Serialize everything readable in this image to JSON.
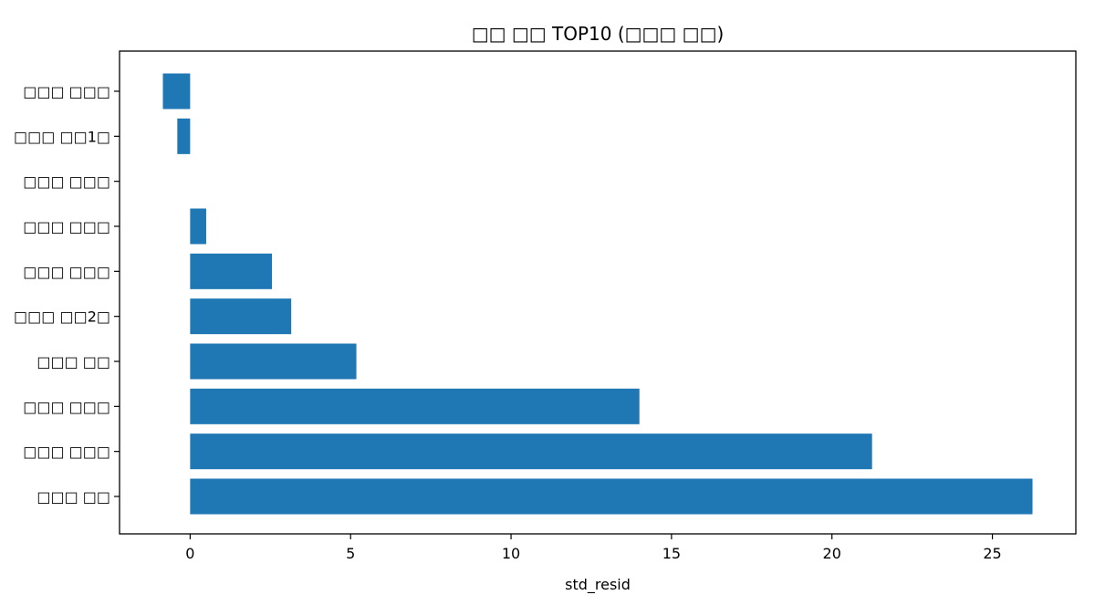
{
  "chart_data": {
    "type": "bar",
    "orientation": "horizontal",
    "title": "□□ □□ TOP10 (□□□ □□)",
    "xlabel": "std_resid",
    "ylabel": "",
    "categories": [
      "□□□ □□□",
      "□□□ □□1□",
      "□□□ □□□",
      "□□□ □□□",
      "□□□ □□□",
      "□□□ □□2□",
      "□□□ □□",
      "□□□ □□□",
      "□□□ □□□",
      "□□□ □□"
    ],
    "values": [
      -0.85,
      -0.4,
      0.0,
      0.5,
      2.55,
      3.15,
      5.18,
      14.0,
      21.25,
      26.25
    ],
    "xlim": [
      -2.2,
      27.6
    ],
    "xticks": [
      0,
      5,
      10,
      15,
      20,
      25
    ],
    "bar_color": "#1f77b4",
    "grid": false,
    "legend": "none"
  }
}
